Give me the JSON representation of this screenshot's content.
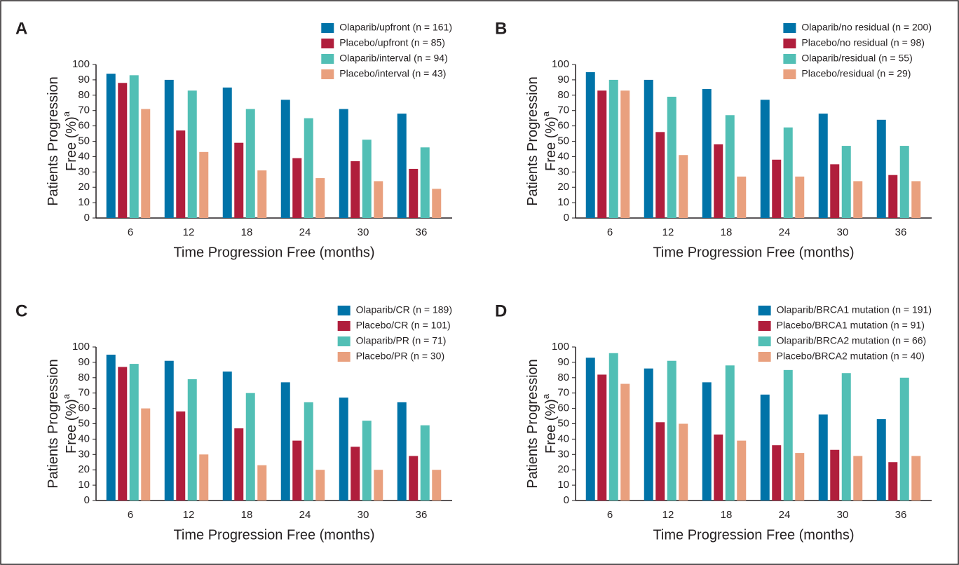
{
  "chart_data": [
    {
      "type": "bar",
      "label": "A",
      "ylabel": [
        "Patients Progression",
        "Free (%)"
      ],
      "ylabel_note": "a",
      "xlabel": "Time Progression Free (months)",
      "categories": [
        "6",
        "12",
        "18",
        "24",
        "30",
        "36"
      ],
      "series": [
        {
          "name": "Olaparib/upfront (n = 161)",
          "color": "#0073a8",
          "values": [
            94,
            90,
            85,
            77,
            71,
            68
          ]
        },
        {
          "name": "Placebo/upfront (n = 85)",
          "color": "#b01e3c",
          "values": [
            88,
            57,
            49,
            39,
            37,
            32
          ]
        },
        {
          "name": "Olaparib/interval (n = 94)",
          "color": "#52bfb5",
          "values": [
            93,
            83,
            71,
            65,
            51,
            46
          ]
        },
        {
          "name": "Placebo/interval (n = 43)",
          "color": "#e9a07e",
          "values": [
            71,
            43,
            31,
            26,
            24,
            19
          ]
        }
      ],
      "ylim": [
        0,
        100
      ],
      "yticks": [
        0,
        10,
        20,
        30,
        40,
        50,
        60,
        70,
        80,
        90,
        100
      ]
    },
    {
      "type": "bar",
      "label": "B",
      "ylabel": [
        "Patients Progression",
        "Free (%)"
      ],
      "ylabel_note": "a",
      "xlabel": "Time Progression Free (months)",
      "categories": [
        "6",
        "12",
        "18",
        "24",
        "30",
        "36"
      ],
      "series": [
        {
          "name": "Olaparib/no residual (n = 200)",
          "color": "#0073a8",
          "values": [
            95,
            90,
            84,
            77,
            68,
            64
          ]
        },
        {
          "name": "Placebo/no residual (n = 98)",
          "color": "#b01e3c",
          "values": [
            83,
            56,
            48,
            38,
            35,
            28
          ]
        },
        {
          "name": "Olaparib/residual (n = 55)",
          "color": "#52bfb5",
          "values": [
            90,
            79,
            67,
            59,
            47,
            47
          ]
        },
        {
          "name": "Placebo/residual (n = 29)",
          "color": "#e9a07e",
          "values": [
            83,
            41,
            27,
            27,
            24,
            24
          ]
        }
      ],
      "ylim": [
        0,
        100
      ],
      "yticks": [
        0,
        10,
        20,
        30,
        40,
        50,
        60,
        70,
        80,
        90,
        100
      ]
    },
    {
      "type": "bar",
      "label": "C",
      "ylabel": [
        "Patients Progression",
        "Free (%)"
      ],
      "ylabel_note": "a",
      "xlabel": "Time Progression Free (months)",
      "categories": [
        "6",
        "12",
        "18",
        "24",
        "30",
        "36"
      ],
      "series": [
        {
          "name": "Olaparib/CR (n = 189)",
          "color": "#0073a8",
          "values": [
            95,
            91,
            84,
            77,
            67,
            64
          ]
        },
        {
          "name": "Placebo/CR (n = 101)",
          "color": "#b01e3c",
          "values": [
            87,
            58,
            47,
            39,
            35,
            29
          ]
        },
        {
          "name": "Olaparib/PR (n = 71)",
          "color": "#52bfb5",
          "values": [
            89,
            79,
            70,
            64,
            52,
            49
          ]
        },
        {
          "name": "Placebo/PR (n = 30)",
          "color": "#e9a07e",
          "values": [
            60,
            30,
            23,
            20,
            20,
            20
          ]
        }
      ],
      "ylim": [
        0,
        100
      ],
      "yticks": [
        0,
        10,
        20,
        30,
        40,
        50,
        60,
        70,
        80,
        90,
        100
      ]
    },
    {
      "type": "bar",
      "label": "D",
      "ylabel": [
        "Patients Progression",
        "Free (%)"
      ],
      "ylabel_note": "a",
      "xlabel": "Time Progression Free (months)",
      "categories": [
        "6",
        "12",
        "18",
        "24",
        "30",
        "36"
      ],
      "series": [
        {
          "name": "Olaparib/BRCA1 mutation (n = 191)",
          "color": "#0073a8",
          "values": [
            93,
            86,
            77,
            69,
            56,
            53
          ]
        },
        {
          "name": "Placebo/BRCA1 mutation (n = 91)",
          "color": "#b01e3c",
          "values": [
            82,
            51,
            43,
            36,
            33,
            25
          ]
        },
        {
          "name": "Olaparib/BRCA2 mutation (n = 66)",
          "color": "#52bfb5",
          "values": [
            96,
            91,
            88,
            85,
            83,
            80
          ]
        },
        {
          "name": "Placebo/BRCA2 mutation (n = 40)",
          "color": "#e9a07e",
          "values": [
            76,
            50,
            39,
            31,
            29,
            29
          ]
        }
      ],
      "ylim": [
        0,
        100
      ],
      "yticks": [
        0,
        10,
        20,
        30,
        40,
        50,
        60,
        70,
        80,
        90,
        100
      ]
    }
  ]
}
